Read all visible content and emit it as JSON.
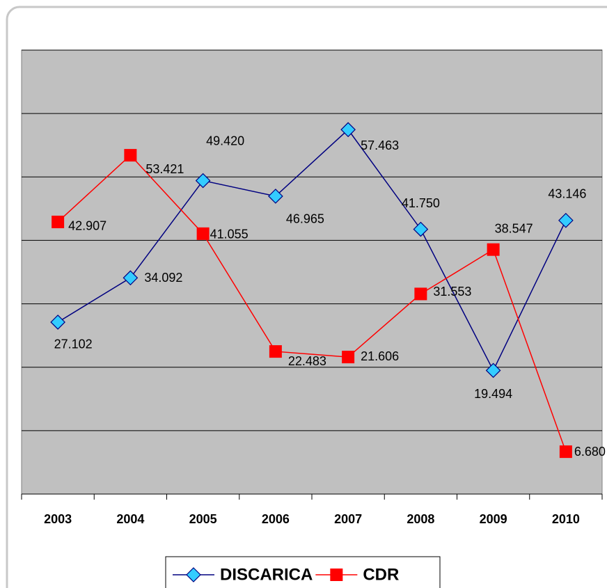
{
  "chart_data": {
    "type": "line",
    "categories": [
      "2003",
      "2004",
      "2005",
      "2006",
      "2007",
      "2008",
      "2009",
      "2010"
    ],
    "series": [
      {
        "name": "DISCARICA",
        "color": "#000080",
        "marker_color": "#33ccff",
        "marker": "diamond",
        "values": [
          27.102,
          34.092,
          49.42,
          46.965,
          57.463,
          41.75,
          19.494,
          43.146
        ],
        "value_labels": [
          "27.102",
          "34.092",
          "49.420",
          "46.965",
          "57.463",
          "41.750",
          "19.494",
          "43.146"
        ]
      },
      {
        "name": "CDR",
        "color": "#ff0000",
        "marker_color": "#ff0000",
        "marker": "square",
        "values": [
          42.907,
          53.421,
          41.055,
          22.483,
          21.606,
          31.553,
          38.547,
          6.68
        ],
        "value_labels": [
          "42.907",
          "53.421",
          "41.055",
          "22.483",
          "21.606",
          "31.553",
          "38.547",
          "6.680"
        ]
      }
    ],
    "ylim": [
      0,
      70
    ],
    "yticks": [
      0,
      10,
      20,
      30,
      40,
      50,
      60,
      70
    ],
    "grid": true,
    "legend": "bottom"
  }
}
